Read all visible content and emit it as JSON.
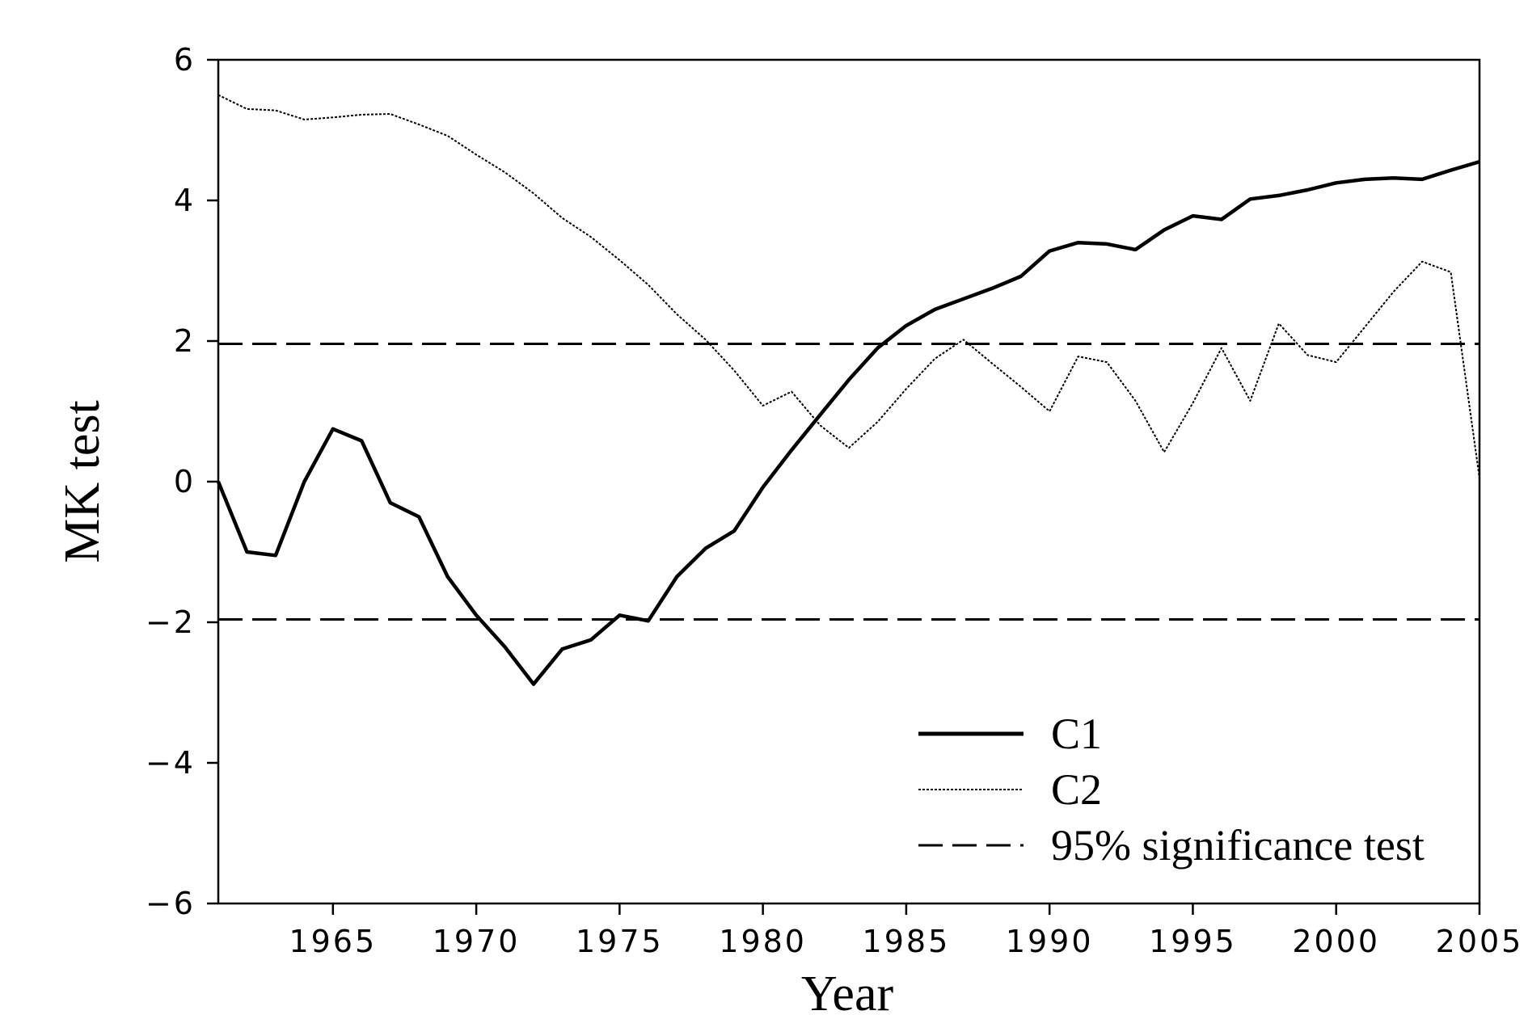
{
  "chart_data": {
    "type": "line",
    "xlabel": "Year",
    "ylabel": "MK test",
    "xlim": [
      1961,
      2005
    ],
    "ylim": [
      -6,
      6
    ],
    "xticks": [
      1965,
      1970,
      1975,
      1980,
      1985,
      1990,
      1995,
      2000,
      2005
    ],
    "yticks": [
      6,
      4,
      2,
      0,
      -2,
      -4,
      -6
    ],
    "ytick_labels": [
      "6",
      "4",
      "2",
      "0",
      "−2",
      "−4",
      "−6"
    ],
    "grid": false,
    "legend_position": "bottom-right",
    "x": [
      1961,
      1962,
      1963,
      1964,
      1965,
      1966,
      1967,
      1968,
      1969,
      1970,
      1971,
      1972,
      1973,
      1974,
      1975,
      1976,
      1977,
      1978,
      1979,
      1980,
      1981,
      1982,
      1983,
      1984,
      1985,
      1986,
      1987,
      1988,
      1989,
      1990,
      1991,
      1992,
      1993,
      1994,
      1995,
      1996,
      1997,
      1998,
      1999,
      2000,
      2001,
      2002,
      2003,
      2004,
      2005
    ],
    "series": [
      {
        "name": "C1",
        "style": "solid",
        "values": [
          0.0,
          -1.0,
          -1.05,
          0.0,
          0.75,
          0.58,
          -0.3,
          -0.5,
          -1.35,
          -1.9,
          -2.35,
          -2.88,
          -2.38,
          -2.25,
          -1.9,
          -1.98,
          -1.35,
          -0.95,
          -0.7,
          -0.08,
          0.45,
          0.95,
          1.45,
          1.9,
          2.22,
          2.45,
          2.6,
          2.75,
          2.92,
          3.28,
          3.4,
          3.38,
          3.3,
          3.58,
          3.78,
          3.73,
          4.02,
          4.07,
          4.15,
          4.25,
          4.3,
          4.32,
          4.3,
          4.43,
          4.55
        ]
      },
      {
        "name": "C2",
        "style": "dotted",
        "values": [
          5.5,
          5.3,
          5.28,
          5.15,
          5.18,
          5.22,
          5.23,
          5.08,
          4.92,
          4.65,
          4.4,
          4.1,
          3.75,
          3.48,
          3.15,
          2.8,
          2.38,
          2.02,
          1.58,
          1.08,
          1.28,
          0.8,
          0.48,
          0.85,
          1.32,
          1.75,
          2.02,
          1.68,
          1.35,
          1.0,
          1.78,
          1.7,
          1.15,
          0.42,
          1.12,
          1.9,
          1.15,
          2.25,
          1.8,
          1.7,
          2.2,
          2.7,
          3.13,
          2.98,
          0.05
        ]
      }
    ],
    "reference_lines": [
      {
        "name": "95% significance test",
        "y": 1.96,
        "style": "dashed"
      },
      {
        "name": "95% significance test",
        "y": -1.96,
        "style": "dashed"
      }
    ],
    "legend": [
      "C1",
      "C2",
      "95% significance test"
    ]
  }
}
